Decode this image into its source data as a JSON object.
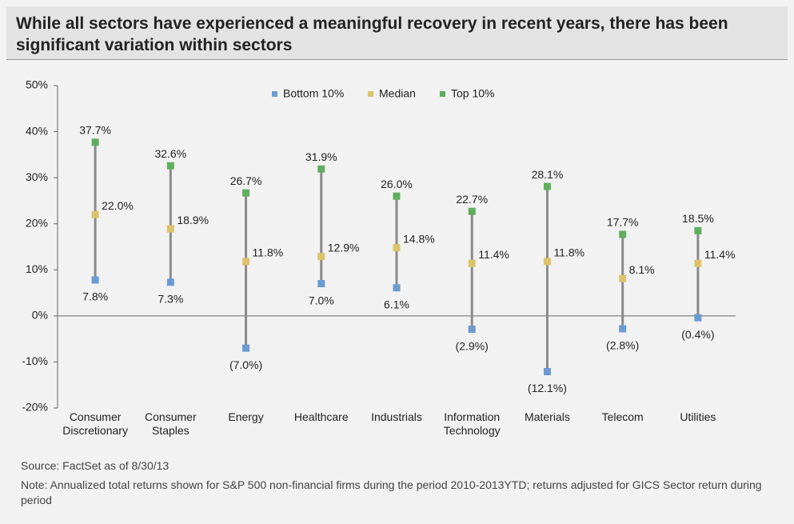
{
  "chart_data": {
    "type": "range_dot",
    "title": "While all sectors have experienced a meaningful recovery in recent years, there has been significant variation within sectors",
    "categories": [
      "Consumer Discretionary",
      "Consumer Staples",
      "Energy",
      "Healthcare",
      "Industrials",
      "Information Technology",
      "Materials",
      "Telecom",
      "Utilities"
    ],
    "series": [
      {
        "name": "Bottom 10%",
        "color": "#6b9bd2",
        "values": [
          7.8,
          7.3,
          -7.0,
          7.0,
          6.1,
          -2.9,
          -12.1,
          -2.8,
          -0.4
        ],
        "value_labels": [
          "7.8%",
          "7.3%",
          "(7.0%)",
          "7.0%",
          "6.1%",
          "(2.9%)",
          "(12.1%)",
          "(2.8%)",
          "(0.4%)"
        ]
      },
      {
        "name": "Median",
        "color": "#dcc36a",
        "values": [
          22.0,
          18.9,
          11.8,
          12.9,
          14.8,
          11.4,
          11.8,
          8.1,
          11.4
        ],
        "value_labels": [
          "22.0%",
          "18.9%",
          "11.8%",
          "12.9%",
          "14.8%",
          "11.4%",
          "11.8%",
          "8.1%",
          "11.4%"
        ]
      },
      {
        "name": "Top 10%",
        "color": "#5fae5f",
        "values": [
          37.7,
          32.6,
          26.7,
          31.9,
          26.0,
          22.7,
          28.1,
          17.7,
          18.5
        ],
        "value_labels": [
          "37.7%",
          "32.6%",
          "26.7%",
          "31.9%",
          "26.0%",
          "22.7%",
          "28.1%",
          "17.7%",
          "18.5%"
        ]
      }
    ],
    "ylim": [
      -20,
      50
    ],
    "yticks": [
      {
        "value": -20,
        "label": "-20%"
      },
      {
        "value": -10,
        "label": "-10%"
      },
      {
        "value": 0,
        "label": "0%"
      },
      {
        "value": 10,
        "label": "10%"
      },
      {
        "value": 20,
        "label": "20%"
      },
      {
        "value": 30,
        "label": "30%"
      },
      {
        "value": 40,
        "label": "40%"
      },
      {
        "value": 50,
        "label": "50%"
      }
    ],
    "legend": "top",
    "source": "Source: FactSet as of 8/30/13",
    "note": "Note: Annualized total returns shown for S&P 500 non-financial firms during the period 2010-2013YTD; returns adjusted for GICS Sector return during period"
  }
}
